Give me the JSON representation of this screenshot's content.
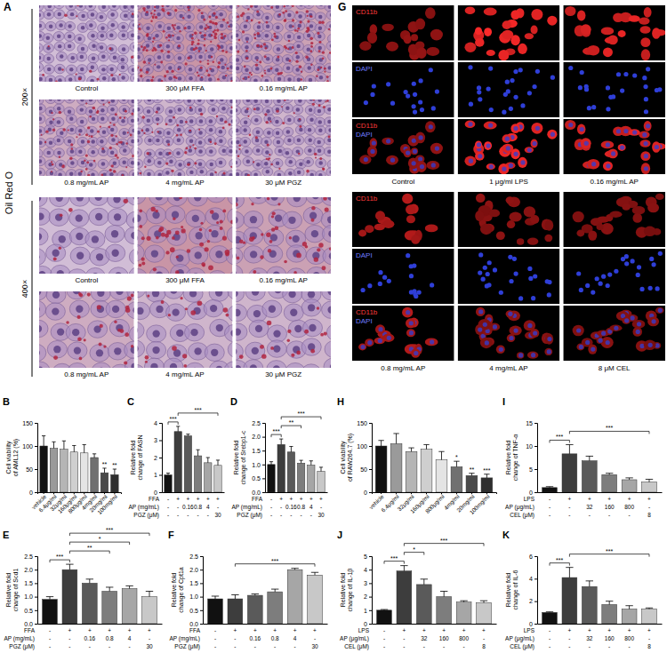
{
  "chart_data": [
    {
      "panel": "B",
      "type": "bar",
      "ylabel": "Cell viability of AML12 (%)",
      "categories": [
        "vehicle",
        "6.4μg/ml",
        "32μg/ml",
        "160μg/ml",
        "800μg/ml",
        "4mg/ml",
        "20mg/ml",
        "100mg/ml"
      ],
      "values": [
        100,
        95,
        93,
        87,
        85,
        75,
        42,
        38
      ],
      "errors": [
        22,
        14,
        18,
        14,
        18,
        8,
        10,
        12
      ],
      "colors": [
        "#111111",
        "#9a9a9a",
        "#b5b5b5",
        "#cfcfcf",
        "#e4e4e4",
        "#707070",
        "#4a4a4a",
        "#2e2e2e"
      ],
      "ylim": [
        0,
        150
      ],
      "yticks": [
        0,
        50,
        100,
        150
      ],
      "significance": [
        {
          "text": "**",
          "at": 6
        },
        {
          "text": "**",
          "at": 7
        }
      ]
    },
    {
      "panel": "C",
      "type": "bar",
      "ylabel": "Relative fold change of FASN",
      "categories": [
        null,
        null,
        null,
        null,
        null,
        null
      ],
      "values": [
        1.0,
        3.5,
        3.25,
        2.1,
        1.7,
        1.55
      ],
      "errors": [
        0.1,
        0.3,
        0.1,
        0.35,
        0.3,
        0.3
      ],
      "colors": [
        "#111111",
        "#3d3d3d",
        "#5a5a5a",
        "#7d7d7d",
        "#a6a6a6",
        "#c8c8c8"
      ],
      "ylim": [
        0,
        4
      ],
      "yticks": [
        0,
        1,
        2,
        3,
        4
      ],
      "treatments": [
        {
          "label": "FFA",
          "values": [
            "-",
            "+",
            "+",
            "+",
            "+",
            "+"
          ]
        },
        {
          "label": "AP (mg/mL)",
          "values": [
            "-",
            "-",
            "0.16",
            "0.8",
            "4",
            "-"
          ]
        },
        {
          "label": "PGZ (μM)",
          "values": [
            "-",
            "-",
            "-",
            "-",
            "-",
            "30"
          ]
        }
      ],
      "significance": [
        {
          "text": "***",
          "from": 0,
          "to": 1
        },
        {
          "text": "***",
          "from": 1,
          "to": 5
        }
      ]
    },
    {
      "panel": "D",
      "type": "bar",
      "ylabel": "Relative fold change of Srebp1-c",
      "categories": [
        null,
        null,
        null,
        null,
        null,
        null
      ],
      "values": [
        1.0,
        1.72,
        1.45,
        1.05,
        0.98,
        0.75
      ],
      "errors": [
        0.1,
        0.2,
        0.2,
        0.1,
        0.15,
        0.15
      ],
      "colors": [
        "#111111",
        "#3d3d3d",
        "#5a5a5a",
        "#7d7d7d",
        "#a6a6a6",
        "#c8c8c8"
      ],
      "ylim": [
        0,
        2.5
      ],
      "yticks": [
        {
          "value": 0,
          "label": "0.0"
        },
        {
          "value": 0.5,
          "label": "0.5"
        },
        {
          "value": 1,
          "label": "1.0"
        },
        {
          "value": 1.5,
          "label": "1.5"
        },
        {
          "value": 2,
          "label": "2.0"
        },
        {
          "value": 2.5,
          "label": "2.5"
        }
      ],
      "treatments": [
        {
          "label": "FFA",
          "values": [
            "-",
            "+",
            "+",
            "+",
            "+",
            "+"
          ]
        },
        {
          "label": "AP (mg/mL)",
          "values": [
            "-",
            "-",
            "0.16",
            "0.8",
            "4",
            "-"
          ]
        },
        {
          "label": "PGZ (μM)",
          "values": [
            "-",
            "-",
            "-",
            "-",
            "-",
            "30"
          ]
        }
      ],
      "significance": [
        {
          "text": "***",
          "from": 0,
          "to": 1
        },
        {
          "text": "**",
          "from": 1,
          "to": 3
        },
        {
          "text": "***",
          "from": 1,
          "to": 5
        }
      ]
    },
    {
      "panel": "E",
      "type": "bar",
      "ylabel": "Relative fold change of Scd1",
      "categories": [
        null,
        null,
        null,
        null,
        null,
        null
      ],
      "values": [
        0.9,
        2.0,
        1.5,
        1.2,
        1.3,
        1.0
      ],
      "errors": [
        0.1,
        0.2,
        0.15,
        0.15,
        0.1,
        0.2
      ],
      "colors": [
        "#111111",
        "#3d3d3d",
        "#5a5a5a",
        "#7d7d7d",
        "#a6a6a6",
        "#c8c8c8"
      ],
      "ylim": [
        0,
        2.5
      ],
      "yticks": [
        {
          "value": 0,
          "label": "0.0"
        },
        {
          "value": 0.5,
          "label": "0.5"
        },
        {
          "value": 1,
          "label": "1.0"
        },
        {
          "value": 1.5,
          "label": "1.5"
        },
        {
          "value": 2,
          "label": "2.0"
        },
        {
          "value": 2.5,
          "label": "2.5"
        }
      ],
      "treatments": [
        {
          "label": "FFA",
          "values": [
            "-",
            "+",
            "+",
            "+",
            "+",
            "+"
          ]
        },
        {
          "label": "AP (mg/mL)",
          "values": [
            "-",
            "-",
            "0.16",
            "0.8",
            "4",
            "-"
          ]
        },
        {
          "label": "PGZ (μM)",
          "values": [
            "-",
            "-",
            "-",
            "-",
            "-",
            "30"
          ]
        }
      ],
      "significance": [
        {
          "text": "***",
          "from": 0,
          "to": 1
        },
        {
          "text": "**",
          "from": 1,
          "to": 3
        },
        {
          "text": "*",
          "from": 1,
          "to": 4
        },
        {
          "text": "***",
          "from": 1,
          "to": 5
        }
      ]
    },
    {
      "panel": "F",
      "type": "bar",
      "ylabel": "Relative fold change of Cpt1a",
      "categories": [
        null,
        null,
        null,
        null,
        null,
        null
      ],
      "values": [
        0.92,
        0.92,
        1.05,
        1.18,
        2.0,
        1.8
      ],
      "errors": [
        0.1,
        0.15,
        0.05,
        0.1,
        0.05,
        0.1
      ],
      "colors": [
        "#111111",
        "#3d3d3d",
        "#5a5a5a",
        "#7d7d7d",
        "#a6a6a6",
        "#c8c8c8"
      ],
      "ylim": [
        0,
        2.5
      ],
      "yticks": [
        {
          "value": 0,
          "label": "0.0"
        },
        {
          "value": 0.5,
          "label": "0.5"
        },
        {
          "value": 1,
          "label": "1.0"
        },
        {
          "value": 1.5,
          "label": "1.5"
        },
        {
          "value": 2,
          "label": "2.0"
        },
        {
          "value": 2.5,
          "label": "2.5"
        }
      ],
      "treatments": [
        {
          "label": "FFA",
          "values": [
            "-",
            "+",
            "+",
            "+",
            "+",
            "+"
          ]
        },
        {
          "label": "AP (mg/mL)",
          "values": [
            "-",
            "-",
            "0.16",
            "0.8",
            "4",
            "-"
          ]
        },
        {
          "label": "PGZ (μM)",
          "values": [
            "-",
            "-",
            "-",
            "-",
            "-",
            "30"
          ]
        }
      ],
      "significance": [
        {
          "text": "***",
          "from": 1,
          "to": 5
        }
      ]
    },
    {
      "panel": "H",
      "type": "bar",
      "ylabel": "Cell viability of RAW264.7 (%)",
      "categories": [
        "vehicle",
        "6.4μg/ml",
        "32μg/ml",
        "160μg/ml",
        "800μg/ml",
        "4mg/ml",
        "20mg/ml",
        "100mg/ml"
      ],
      "values": [
        100,
        105,
        88,
        93,
        70,
        55,
        36,
        31
      ],
      "errors": [
        12,
        22,
        8,
        10,
        18,
        12,
        5,
        8
      ],
      "colors": [
        "#111111",
        "#9a9a9a",
        "#b5b5b5",
        "#cfcfcf",
        "#e4e4e4",
        "#707070",
        "#4a4a4a",
        "#2e2e2e"
      ],
      "ylim": [
        0,
        150
      ],
      "yticks": [
        0,
        50,
        100,
        150
      ],
      "significance": [
        {
          "text": "*",
          "at": 5
        },
        {
          "text": "**",
          "at": 6
        },
        {
          "text": "***",
          "at": 7
        }
      ]
    },
    {
      "panel": "I",
      "type": "bar",
      "ylabel": "Relative fold change of TNF-α",
      "categories": [
        null,
        null,
        null,
        null,
        null,
        null
      ],
      "values": [
        1.0,
        8.3,
        6.8,
        3.8,
        2.7,
        2.2
      ],
      "errors": [
        0.2,
        2.0,
        1.0,
        0.3,
        0.4,
        0.6
      ],
      "colors": [
        "#111111",
        "#3d3d3d",
        "#5a5a5a",
        "#7d7d7d",
        "#a6a6a6",
        "#c8c8c8"
      ],
      "ylim": [
        0,
        15
      ],
      "yticks": [
        0,
        5,
        10,
        15
      ],
      "treatments": [
        {
          "label": "LPS",
          "values": [
            "-",
            "+",
            "+",
            "+",
            "+",
            "+"
          ]
        },
        {
          "label": "AP (μg/mL)",
          "values": [
            "-",
            "-",
            "32",
            "160",
            "800",
            "-"
          ]
        },
        {
          "label": "CEL (μM)",
          "values": [
            "-",
            "-",
            "-",
            "-",
            "-",
            "8"
          ]
        }
      ],
      "significance": [
        {
          "text": "***",
          "from": 0,
          "to": 1
        },
        {
          "text": "***",
          "from": 1,
          "to": 5
        }
      ]
    },
    {
      "panel": "J",
      "type": "bar",
      "ylabel": "Relative fold change of IL-1β",
      "categories": [
        null,
        null,
        null,
        null,
        null,
        null
      ],
      "values": [
        1.0,
        3.9,
        2.9,
        2.0,
        1.6,
        1.55
      ],
      "errors": [
        0.05,
        0.4,
        0.4,
        0.4,
        0.1,
        0.15
      ],
      "colors": [
        "#111111",
        "#3d3d3d",
        "#5a5a5a",
        "#7d7d7d",
        "#a6a6a6",
        "#c8c8c8"
      ],
      "ylim": [
        0,
        5
      ],
      "yticks": [
        0,
        1,
        2,
        3,
        4,
        5
      ],
      "treatments": [
        {
          "label": "LPS",
          "values": [
            "-",
            "+",
            "+",
            "+",
            "+",
            "+"
          ]
        },
        {
          "label": "AP (μg/mL)",
          "values": [
            "-",
            "-",
            "32",
            "160",
            "800",
            "-"
          ]
        },
        {
          "label": "CEL (μM)",
          "values": [
            "-",
            "-",
            "-",
            "-",
            "-",
            "8"
          ]
        }
      ],
      "significance": [
        {
          "text": "***",
          "from": 0,
          "to": 1
        },
        {
          "text": "*",
          "from": 1,
          "to": 2
        },
        {
          "text": "***",
          "from": 1,
          "to": 5
        }
      ]
    },
    {
      "panel": "K",
      "type": "bar",
      "ylabel": "Relative fold change of IL-6",
      "categories": [
        null,
        null,
        null,
        null,
        null,
        null
      ],
      "values": [
        1.0,
        4.1,
        3.3,
        1.7,
        1.3,
        1.3
      ],
      "errors": [
        0.05,
        0.9,
        0.5,
        0.3,
        0.3,
        0.1
      ],
      "colors": [
        "#111111",
        "#3d3d3d",
        "#5a5a5a",
        "#7d7d7d",
        "#a6a6a6",
        "#c8c8c8"
      ],
      "ylim": [
        0,
        6
      ],
      "yticks": [
        0,
        2,
        4,
        6
      ],
      "treatments": [
        {
          "label": "LPS",
          "values": [
            "-",
            "+",
            "+",
            "+",
            "+",
            "+"
          ]
        },
        {
          "label": "AP (μg/mL)",
          "values": [
            "-",
            "-",
            "32",
            "160",
            "800",
            "-"
          ]
        },
        {
          "label": "CEL (μM)",
          "values": [
            "-",
            "-",
            "-",
            "-",
            "-",
            "8"
          ]
        }
      ],
      "significance": [
        {
          "text": "***",
          "from": 0,
          "to": 1
        },
        {
          "text": "***",
          "from": 1,
          "to": 5
        }
      ]
    }
  ],
  "image_panels": [
    {
      "panel": "A",
      "title": "Oil Red O",
      "groups": [
        {
          "magnification": "200×",
          "captions": [
            "Control",
            "300 μM FFA",
            "0.16 mg/mL AP",
            "0.8 mg/mL AP",
            "4 mg/mL AP",
            "30 μM PGZ"
          ]
        },
        {
          "magnification": "400×",
          "captions": [
            "Control",
            "300 μM FFA",
            "0.16 mg/mL AP",
            "0.8 mg/mL AP",
            "4 mg/mL AP",
            "30 μM PGZ"
          ]
        }
      ]
    },
    {
      "panel": "G",
      "channels": [
        "CD11b",
        "DAPI"
      ],
      "groups": [
        {
          "captions": [
            "Control",
            "1 μg/ml LPS",
            "0.16 mg/mL AP"
          ]
        },
        {
          "captions": [
            "0.8 mg/mL AP",
            "4 mg/mL AP",
            "8 μM CEL"
          ]
        }
      ]
    }
  ]
}
